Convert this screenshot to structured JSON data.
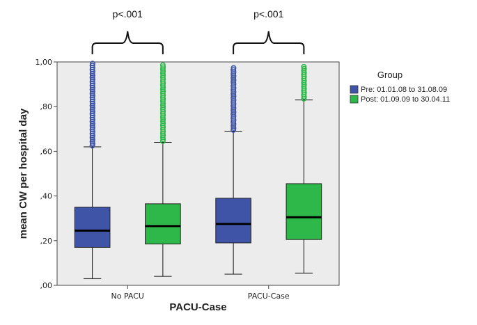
{
  "chart_data": {
    "type": "box",
    "xlabel": "PACU-Case",
    "ylabel": "mean CW per hospital day",
    "ylim": [
      0,
      1.0
    ],
    "yticks": [
      0,
      0.2,
      0.4,
      0.6,
      0.8,
      1.0
    ],
    "ytick_labels": [
      ",00",
      ",20",
      ",40",
      ",60",
      ",80",
      "1,00"
    ],
    "categories": [
      "No PACU",
      "PACU-Case"
    ],
    "legend": {
      "title": "Group",
      "placement": "right",
      "entries": [
        {
          "label": "Pre: 01.01.08  to 31.08.09",
          "color": "#3f54a6"
        },
        {
          "label": "Post: 01.09.09 to 30.04.11",
          "color": "#2eb84a"
        }
      ]
    },
    "series": [
      {
        "name": "Pre: 01.01.08  to 31.08.09",
        "color": "#3f54a6",
        "boxes": [
          {
            "category": "No PACU",
            "whisker_low": 0.03,
            "q1": 0.17,
            "median": 0.245,
            "q3": 0.35,
            "whisker_high": 0.62,
            "outliers_from": 0.625,
            "outliers_to": 1.0
          },
          {
            "category": "PACU-Case",
            "whisker_low": 0.05,
            "q1": 0.19,
            "median": 0.275,
            "q3": 0.39,
            "whisker_high": 0.69,
            "outliers_from": 0.695,
            "outliers_to": 0.98
          }
        ]
      },
      {
        "name": "Post: 01.09.09 to 30.04.11",
        "color": "#2eb84a",
        "boxes": [
          {
            "category": "No PACU",
            "whisker_low": 0.04,
            "q1": 0.185,
            "median": 0.265,
            "q3": 0.365,
            "whisker_high": 0.64,
            "outliers_from": 0.645,
            "outliers_to": 1.0
          },
          {
            "category": "PACU-Case",
            "whisker_low": 0.055,
            "q1": 0.205,
            "median": 0.305,
            "q3": 0.455,
            "whisker_high": 0.83,
            "outliers_from": 0.835,
            "outliers_to": 0.98
          }
        ]
      }
    ],
    "annotations": [
      {
        "category": "No PACU",
        "text": "p<.001"
      },
      {
        "category": "PACU-Case",
        "text": "p<.001"
      }
    ],
    "grid": false
  }
}
